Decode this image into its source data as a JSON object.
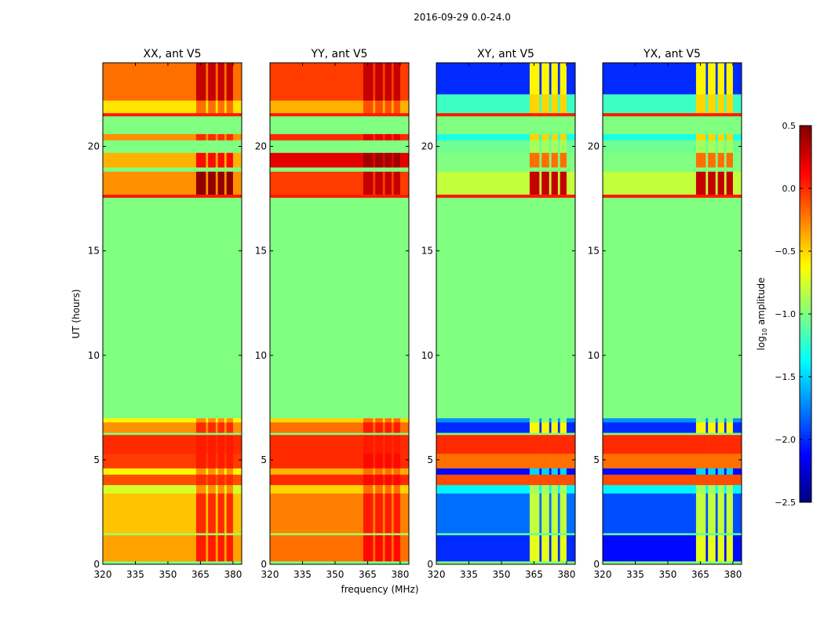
{
  "chart_data": {
    "type": "heatmap",
    "title": "2016-09-29 0.0-24.0",
    "xlabel": "frequency (MHz)",
    "ylabel": "UT (hours)",
    "xlim": [
      320,
      384
    ],
    "ylim": [
      0,
      24
    ],
    "xticks": [
      320,
      335,
      350,
      365,
      380
    ],
    "yticks": [
      0,
      5,
      10,
      15,
      20
    ],
    "rfi_columns_mhz": [
      [
        363,
        367.5
      ],
      [
        368.5,
        372
      ],
      [
        373,
        376
      ],
      [
        377,
        380
      ]
    ],
    "colorbar": {
      "label": "log10 amplitude",
      "label_main": "log",
      "label_sub": "10",
      "label_rest": " amplitude",
      "range": [
        -2.5,
        0.5
      ],
      "ticks": [
        0.5,
        0.0,
        -0.5,
        -1.0,
        -1.5,
        -2.0,
        -2.5
      ],
      "tick_labels": [
        "0.5",
        "0.0",
        "−0.5",
        "−1.0",
        "−1.5",
        "−2.0",
        "−2.5"
      ],
      "colormap": "jet"
    },
    "panels": [
      {
        "title": "XX, ant V5",
        "bands": [
          [
            0,
            0.15,
            -1.0,
            -1.0
          ],
          [
            0.15,
            1.4,
            -0.35,
            0.05
          ],
          [
            1.4,
            1.5,
            -0.9,
            -0.9
          ],
          [
            1.5,
            3.4,
            -0.45,
            0.0
          ],
          [
            3.4,
            3.8,
            -0.75,
            -0.3
          ],
          [
            3.8,
            4.3,
            -0.1,
            0.0
          ],
          [
            4.3,
            4.6,
            -0.6,
            -0.3
          ],
          [
            4.6,
            5.3,
            -0.05,
            0.05
          ],
          [
            5.3,
            6.2,
            0.0,
            0.05
          ],
          [
            6.2,
            6.3,
            -1.0,
            -1.0
          ],
          [
            6.3,
            6.8,
            -0.3,
            0.0
          ],
          [
            6.8,
            7.0,
            -0.6,
            -0.3
          ],
          [
            7.0,
            17.55,
            -1.0,
            -1.0
          ],
          [
            17.55,
            17.7,
            0.05,
            0.05
          ],
          [
            17.7,
            18.8,
            -0.3,
            0.45
          ],
          [
            18.8,
            19.0,
            -1.0,
            -1.0
          ],
          [
            19.0,
            19.7,
            -0.4,
            0.1
          ],
          [
            19.7,
            20.3,
            -1.0,
            -1.0
          ],
          [
            20.3,
            20.6,
            -0.3,
            0.0
          ],
          [
            20.6,
            21.45,
            -1.0,
            -1.0
          ],
          [
            21.45,
            21.6,
            0.05,
            0.05
          ],
          [
            21.6,
            22.2,
            -0.55,
            -0.2
          ],
          [
            22.2,
            24,
            -0.2,
            0.3
          ]
        ]
      },
      {
        "title": "YY, ant V5",
        "bands": [
          [
            0,
            0.15,
            -1.0,
            -1.0
          ],
          [
            0.15,
            1.4,
            -0.2,
            0.1
          ],
          [
            1.4,
            1.5,
            -0.9,
            -0.9
          ],
          [
            1.5,
            3.4,
            -0.25,
            0.05
          ],
          [
            3.4,
            3.8,
            -0.5,
            -0.2
          ],
          [
            3.8,
            4.3,
            0.0,
            0.1
          ],
          [
            4.3,
            4.6,
            -0.4,
            -0.2
          ],
          [
            4.6,
            5.3,
            0.0,
            0.1
          ],
          [
            5.3,
            6.2,
            0.0,
            0.05
          ],
          [
            6.2,
            6.3,
            -1.0,
            -1.0
          ],
          [
            6.3,
            6.8,
            -0.2,
            0.05
          ],
          [
            6.8,
            7.0,
            -0.5,
            -0.2
          ],
          [
            7.0,
            17.55,
            -1.0,
            -1.0
          ],
          [
            17.55,
            17.7,
            0.05,
            0.05
          ],
          [
            17.7,
            18.8,
            -0.05,
            0.3
          ],
          [
            18.8,
            19.0,
            -1.0,
            -1.0
          ],
          [
            19.0,
            19.7,
            0.2,
            0.4
          ],
          [
            19.7,
            20.3,
            -1.0,
            -1.0
          ],
          [
            20.3,
            20.6,
            0.0,
            0.2
          ],
          [
            20.6,
            21.45,
            -1.0,
            -1.0
          ],
          [
            21.45,
            21.6,
            0.05,
            0.05
          ],
          [
            21.6,
            22.2,
            -0.4,
            -0.1
          ],
          [
            22.2,
            24,
            -0.05,
            0.3
          ]
        ]
      },
      {
        "title": "XY, ant V5",
        "bands": [
          [
            0,
            0.15,
            -1.0,
            -1.0
          ],
          [
            0.15,
            1.4,
            -2.0,
            -0.7
          ],
          [
            1.4,
            1.5,
            -1.1,
            -1.1
          ],
          [
            1.5,
            3.4,
            -1.8,
            -0.8
          ],
          [
            3.4,
            3.8,
            -1.4,
            -0.9
          ],
          [
            3.8,
            4.3,
            -0.1,
            -0.1
          ],
          [
            4.3,
            4.6,
            -2.1,
            -1.5
          ],
          [
            4.6,
            5.3,
            -0.2,
            -0.2
          ],
          [
            5.3,
            6.2,
            0.0,
            0.0
          ],
          [
            6.2,
            6.3,
            -1.0,
            -1.0
          ],
          [
            6.3,
            6.8,
            -2.0,
            -0.6
          ],
          [
            6.8,
            7.0,
            -1.7,
            -1.0
          ],
          [
            7.0,
            17.55,
            -1.0,
            -1.0
          ],
          [
            17.55,
            17.7,
            0.05,
            0.05
          ],
          [
            17.7,
            18.8,
            -0.8,
            0.3
          ],
          [
            18.8,
            19.0,
            -1.0,
            -1.0
          ],
          [
            19.0,
            19.7,
            -1.0,
            -0.2
          ],
          [
            19.7,
            20.3,
            -1.05,
            -0.9
          ],
          [
            20.3,
            20.6,
            -1.3,
            -0.5
          ],
          [
            20.6,
            21.45,
            -1.0,
            -1.0
          ],
          [
            21.45,
            21.6,
            0.05,
            0.05
          ],
          [
            21.6,
            22.5,
            -1.2,
            -0.5
          ],
          [
            22.5,
            24,
            -2.0,
            -0.6
          ]
        ]
      },
      {
        "title": "YX, ant V5",
        "bands": [
          [
            0,
            0.15,
            -1.0,
            -1.0
          ],
          [
            0.15,
            1.4,
            -2.1,
            -0.7
          ],
          [
            1.4,
            1.5,
            -1.1,
            -1.1
          ],
          [
            1.5,
            3.4,
            -1.9,
            -0.8
          ],
          [
            3.4,
            3.8,
            -1.4,
            -0.9
          ],
          [
            3.8,
            4.3,
            -0.1,
            -0.1
          ],
          [
            4.3,
            4.6,
            -2.1,
            -1.5
          ],
          [
            4.6,
            5.3,
            -0.2,
            -0.2
          ],
          [
            5.3,
            6.2,
            0.0,
            0.0
          ],
          [
            6.2,
            6.3,
            -1.0,
            -1.0
          ],
          [
            6.3,
            6.8,
            -2.0,
            -0.6
          ],
          [
            6.8,
            7.0,
            -1.7,
            -1.0
          ],
          [
            7.0,
            17.55,
            -1.0,
            -1.0
          ],
          [
            17.55,
            17.7,
            0.05,
            0.05
          ],
          [
            17.7,
            18.8,
            -0.8,
            0.3
          ],
          [
            18.8,
            19.0,
            -1.0,
            -1.0
          ],
          [
            19.0,
            19.7,
            -1.0,
            -0.2
          ],
          [
            19.7,
            20.3,
            -1.05,
            -0.9
          ],
          [
            20.3,
            20.6,
            -1.3,
            -0.5
          ],
          [
            20.6,
            21.45,
            -1.0,
            -1.0
          ],
          [
            21.45,
            21.6,
            0.05,
            0.05
          ],
          [
            21.6,
            22.5,
            -1.2,
            -0.5
          ],
          [
            22.5,
            24,
            -2.0,
            -0.6
          ]
        ]
      }
    ]
  }
}
